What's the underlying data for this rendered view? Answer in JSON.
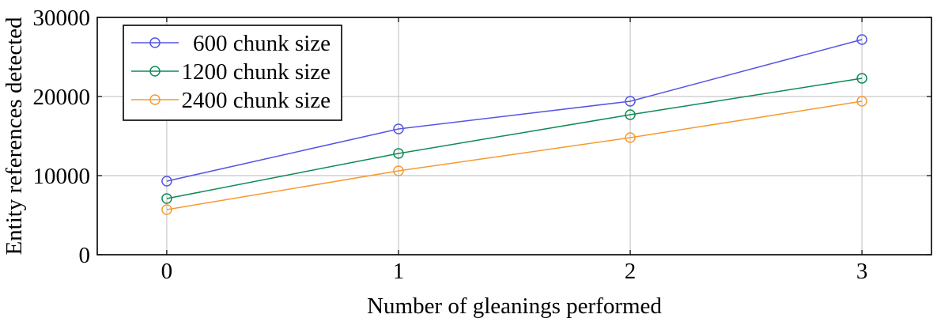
{
  "chart_data": {
    "type": "line",
    "title": "",
    "xlabel": "Number of gleanings performed",
    "ylabel": "Entity references detected",
    "x": [
      0,
      1,
      2,
      3
    ],
    "x_ticks": [
      "0",
      "1",
      "2",
      "3"
    ],
    "xlim": [
      -0.3,
      3.3
    ],
    "ylim": [
      0,
      30000
    ],
    "y_ticks": [
      "0",
      "10000",
      "20000",
      "30000"
    ],
    "grid": true,
    "legend_position": "top-left",
    "series": [
      {
        "name": "600 chunk size",
        "color": "#5555e6",
        "values": [
          9300,
          15900,
          19400,
          27200
        ]
      },
      {
        "name": "1200 chunk size",
        "color": "#0f8a55",
        "values": [
          7100,
          12800,
          17700,
          22300
        ]
      },
      {
        "name": "2400 chunk size",
        "color": "#f59a30",
        "values": [
          5700,
          10600,
          14800,
          19400
        ]
      }
    ]
  }
}
